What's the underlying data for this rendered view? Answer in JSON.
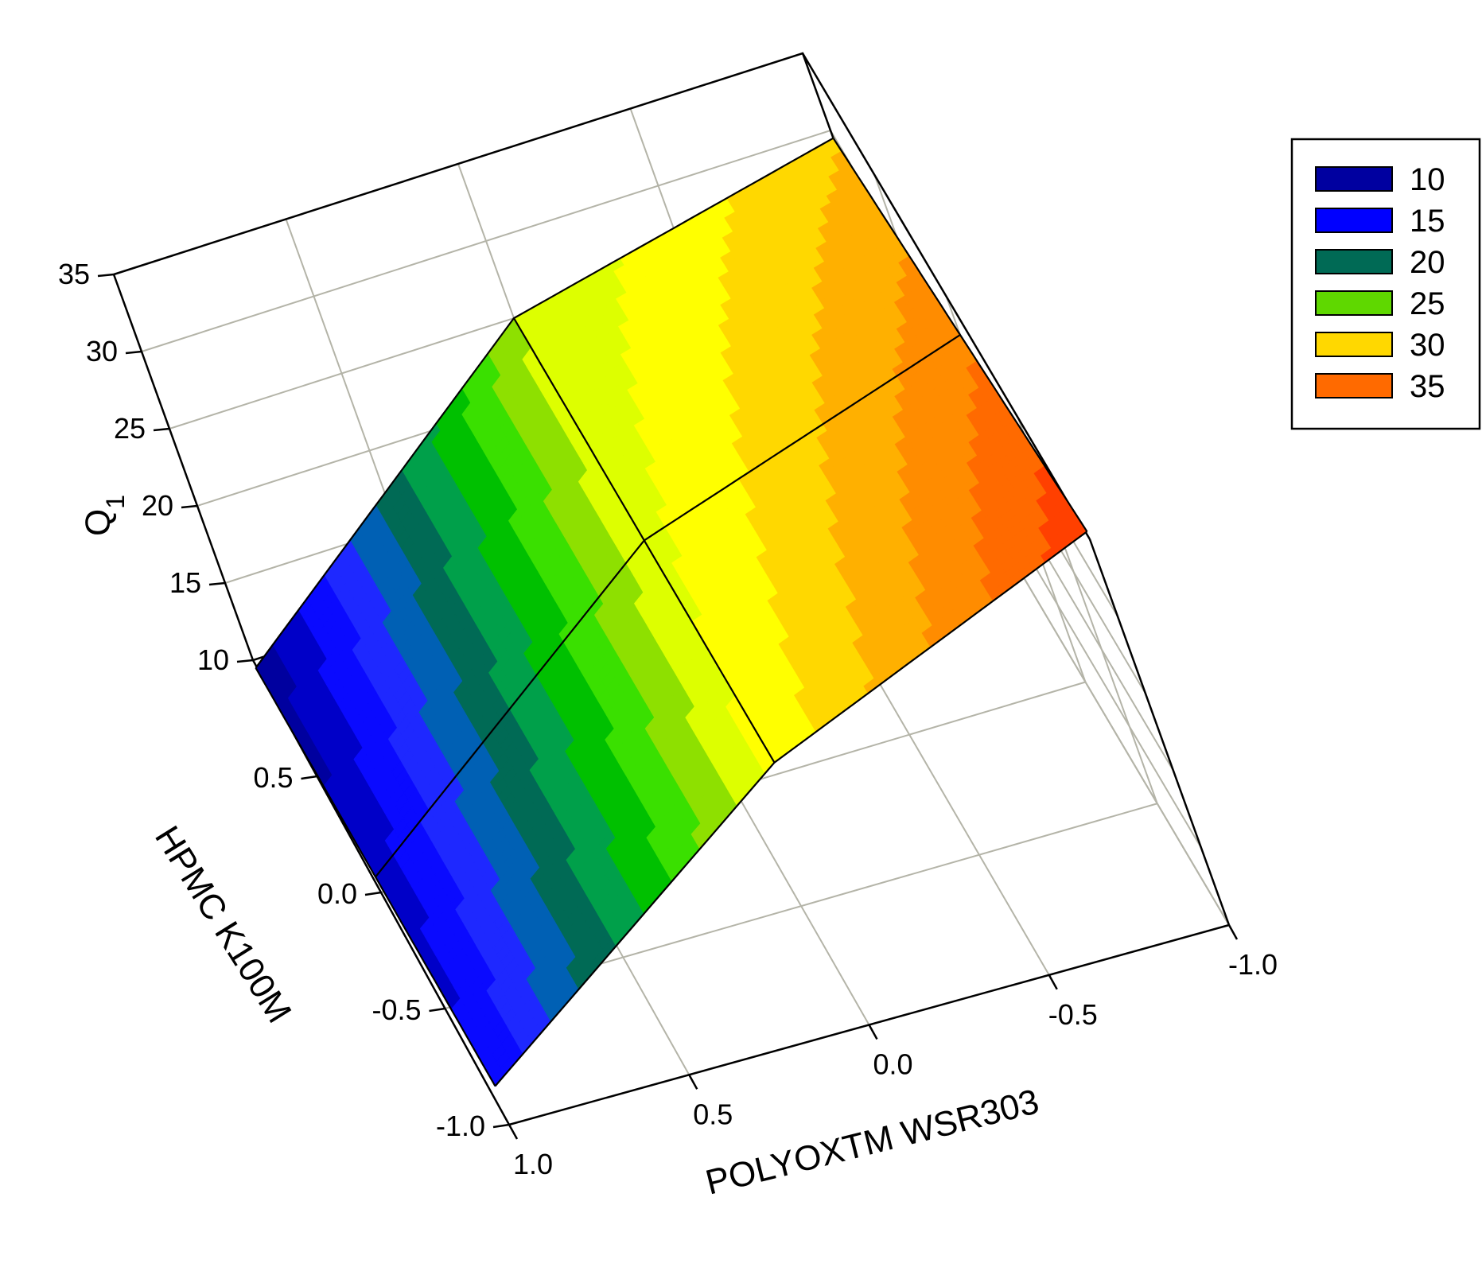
{
  "chart_data": {
    "type": "surface",
    "title": "",
    "x_axis": {
      "label": "POLYOXTM WSR303",
      "range": [
        -1.0,
        1.0
      ],
      "ticks": [
        "1.0",
        "0.5",
        "0.0",
        "-0.5",
        "-1.0"
      ]
    },
    "y_axis": {
      "label": "HPMC K100M",
      "range": [
        -1.0,
        1.0
      ],
      "ticks": [
        "-1.0",
        "-0.5",
        "0.0",
        "0.5"
      ]
    },
    "z_axis": {
      "label": "Q",
      "label_subscript": "1",
      "range": [
        10,
        35
      ],
      "ticks": [
        "10",
        "15",
        "20",
        "25",
        "30",
        "35"
      ]
    },
    "grid": true,
    "surface": {
      "x": [
        -1.0,
        0.0,
        1.0
      ],
      "y": [
        -1.0,
        0.0,
        1.0
      ],
      "z": [
        [
          35.5,
          27.0,
          12.5
        ],
        [
          32.5,
          26.0,
          11.0
        ],
        [
          29.5,
          25.0,
          9.5
        ]
      ]
    },
    "legend": {
      "position": "top-right",
      "entries": [
        {
          "label": "10",
          "color": "#0000a0"
        },
        {
          "label": "15",
          "color": "#0000ff"
        },
        {
          "label": "20",
          "color": "#006a55"
        },
        {
          "label": "25",
          "color": "#5fd800"
        },
        {
          "label": "30",
          "color": "#ffd800"
        },
        {
          "label": "35",
          "color": "#ff6a00"
        }
      ]
    },
    "colormap": [
      "#00009f",
      "#0000c8",
      "#0a0aff",
      "#1e28ff",
      "#0060b4",
      "#006a55",
      "#00a04a",
      "#00c000",
      "#3ae000",
      "#8ee000",
      "#ddff00",
      "#ffff00",
      "#ffd800",
      "#ffb000",
      "#ff8c00",
      "#ff6a00",
      "#ff4000"
    ]
  }
}
